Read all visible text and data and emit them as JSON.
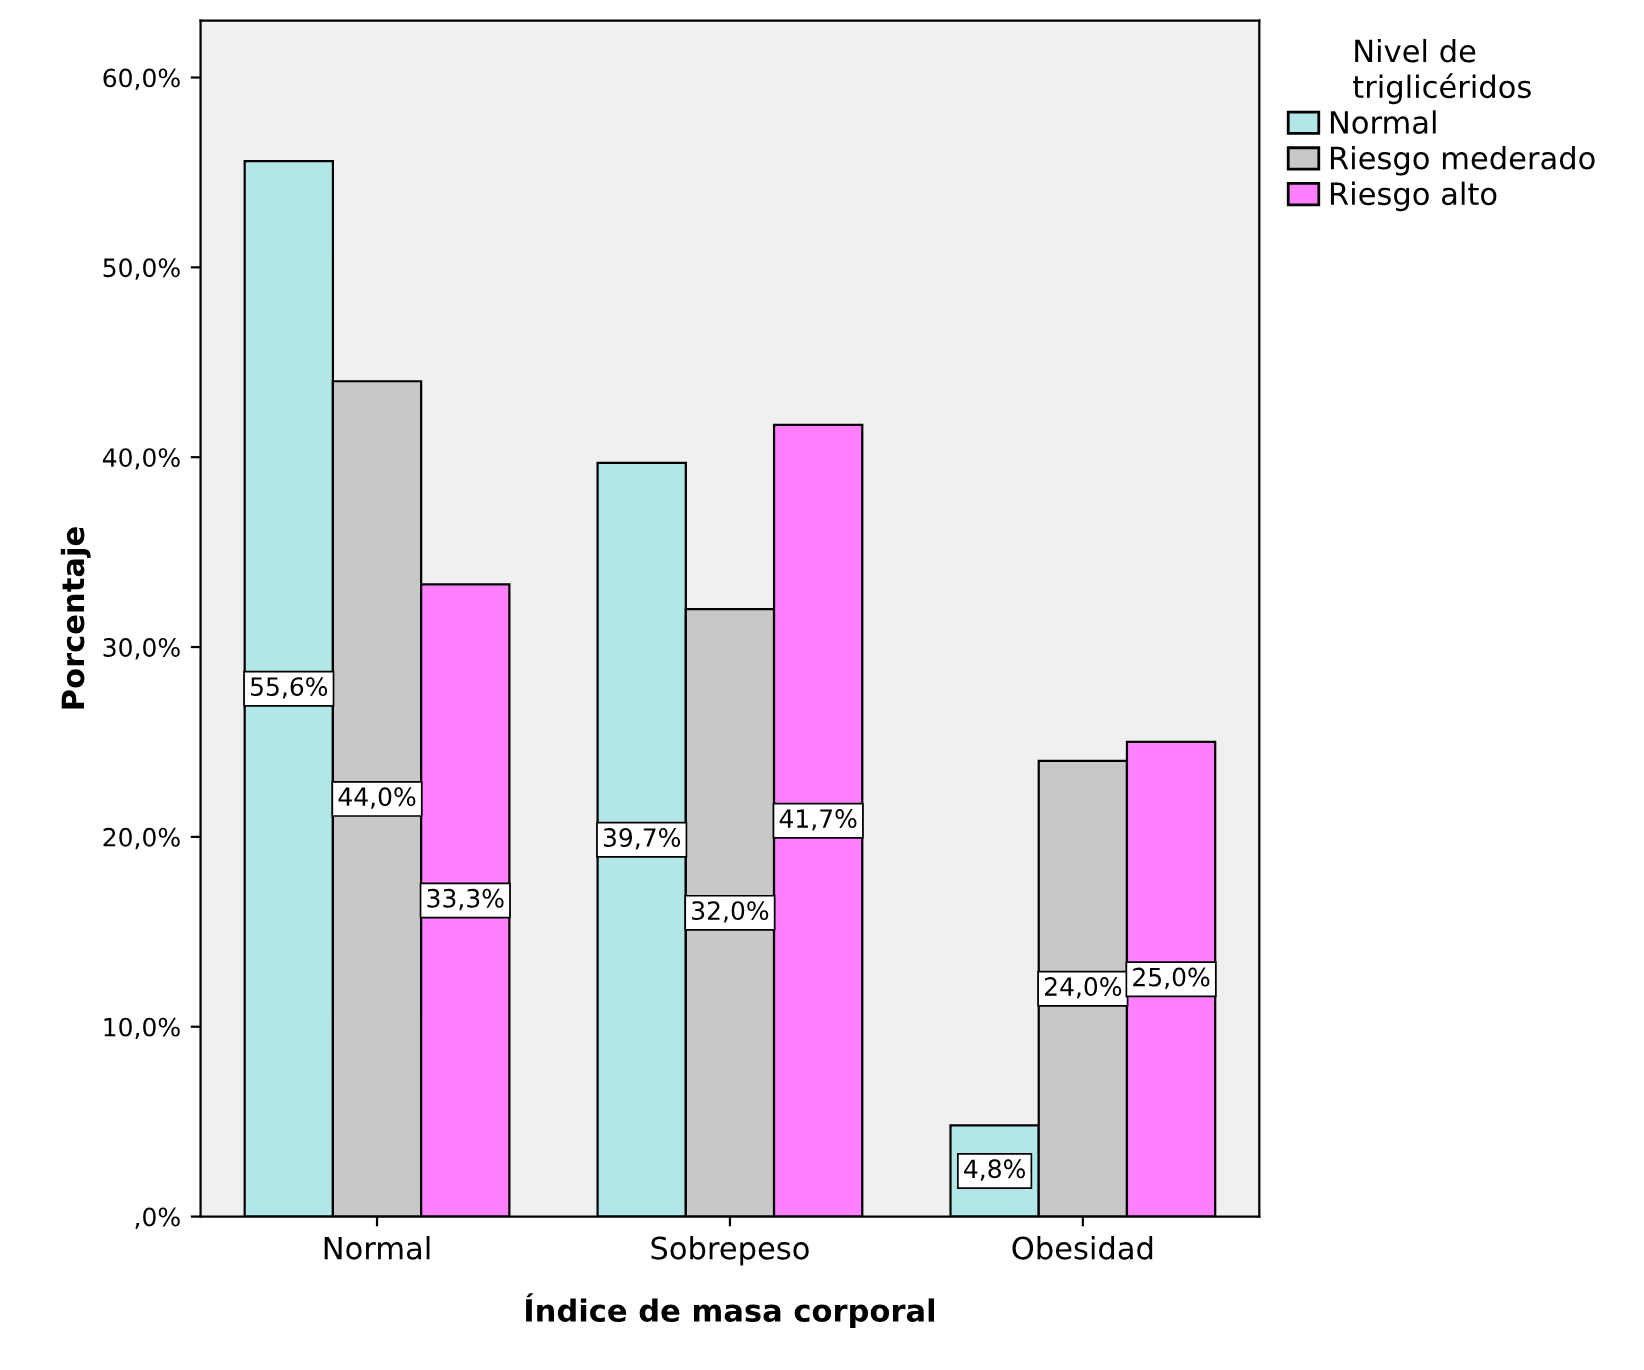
{
  "chart_data": {
    "type": "bar",
    "xlabel": "Índice de masa corporal",
    "ylabel": "Porcentaje",
    "legend_title": "Nivel de\ntriglicéridos",
    "categories": [
      "Normal",
      "Sobrepeso",
      "Obesidad"
    ],
    "series": [
      {
        "name": "Normal",
        "color": "#b3e6e6",
        "values": [
          55.6,
          39.7,
          4.8
        ],
        "value_labels": [
          "55,6%",
          "39,7%",
          "4,8%"
        ]
      },
      {
        "name": "Riesgo mederado",
        "color": "#c8c8c8",
        "values": [
          44.0,
          32.0,
          24.0
        ],
        "value_labels": [
          "44,0%",
          "32,0%",
          "24,0%"
        ]
      },
      {
        "name": "Riesgo alto",
        "color": "#ff80ff",
        "values": [
          33.3,
          41.7,
          25.0
        ],
        "value_labels": [
          "33,3%",
          "41,7%",
          "25,0%"
        ]
      }
    ],
    "ylim": [
      0,
      63
    ],
    "yticks": [
      {
        "value": 0,
        "label": ",0%"
      },
      {
        "value": 10,
        "label": "10,0%"
      },
      {
        "value": 20,
        "label": "20,0%"
      },
      {
        "value": 30,
        "label": "30,0%"
      },
      {
        "value": 40,
        "label": "40,0%"
      },
      {
        "value": 50,
        "label": "50,0%"
      },
      {
        "value": 60,
        "label": "60,0%"
      }
    ],
    "grid": false,
    "legend": "top right"
  }
}
